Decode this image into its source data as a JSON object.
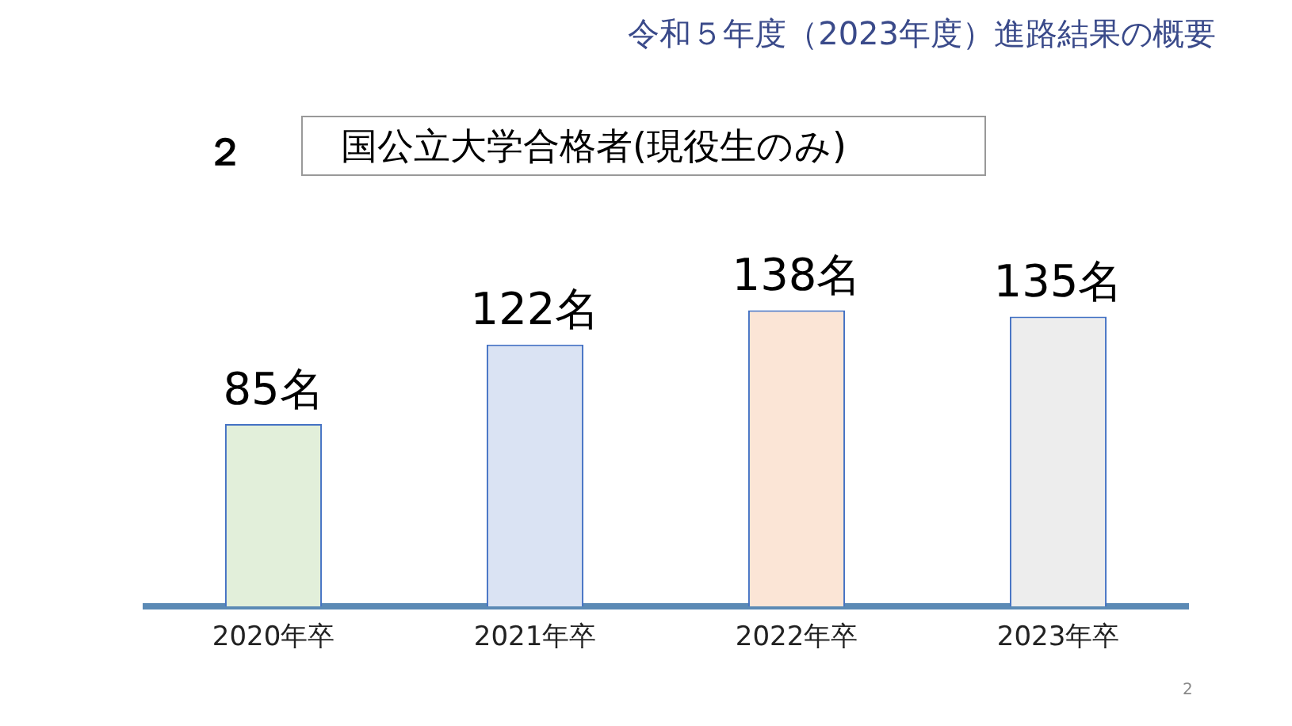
{
  "chart_data": {
    "type": "bar",
    "title": "令和５年度（2023年度）進路結果の概要",
    "subtitle": "国公立大学合格者(現役生のみ)",
    "categories": [
      "2020年卒",
      "2021年卒",
      "2022年卒",
      "2023年卒"
    ],
    "values": [
      85,
      122,
      138,
      135
    ],
    "colors": [
      "#e2efda",
      "#dae3f3",
      "#fbe5d6",
      "#ededed"
    ],
    "value_labels": [
      "85名",
      "122名",
      "138名",
      "135名"
    ],
    "annotations": [
      "２",
      "2"
    ],
    "grid": false,
    "legend": false
  }
}
